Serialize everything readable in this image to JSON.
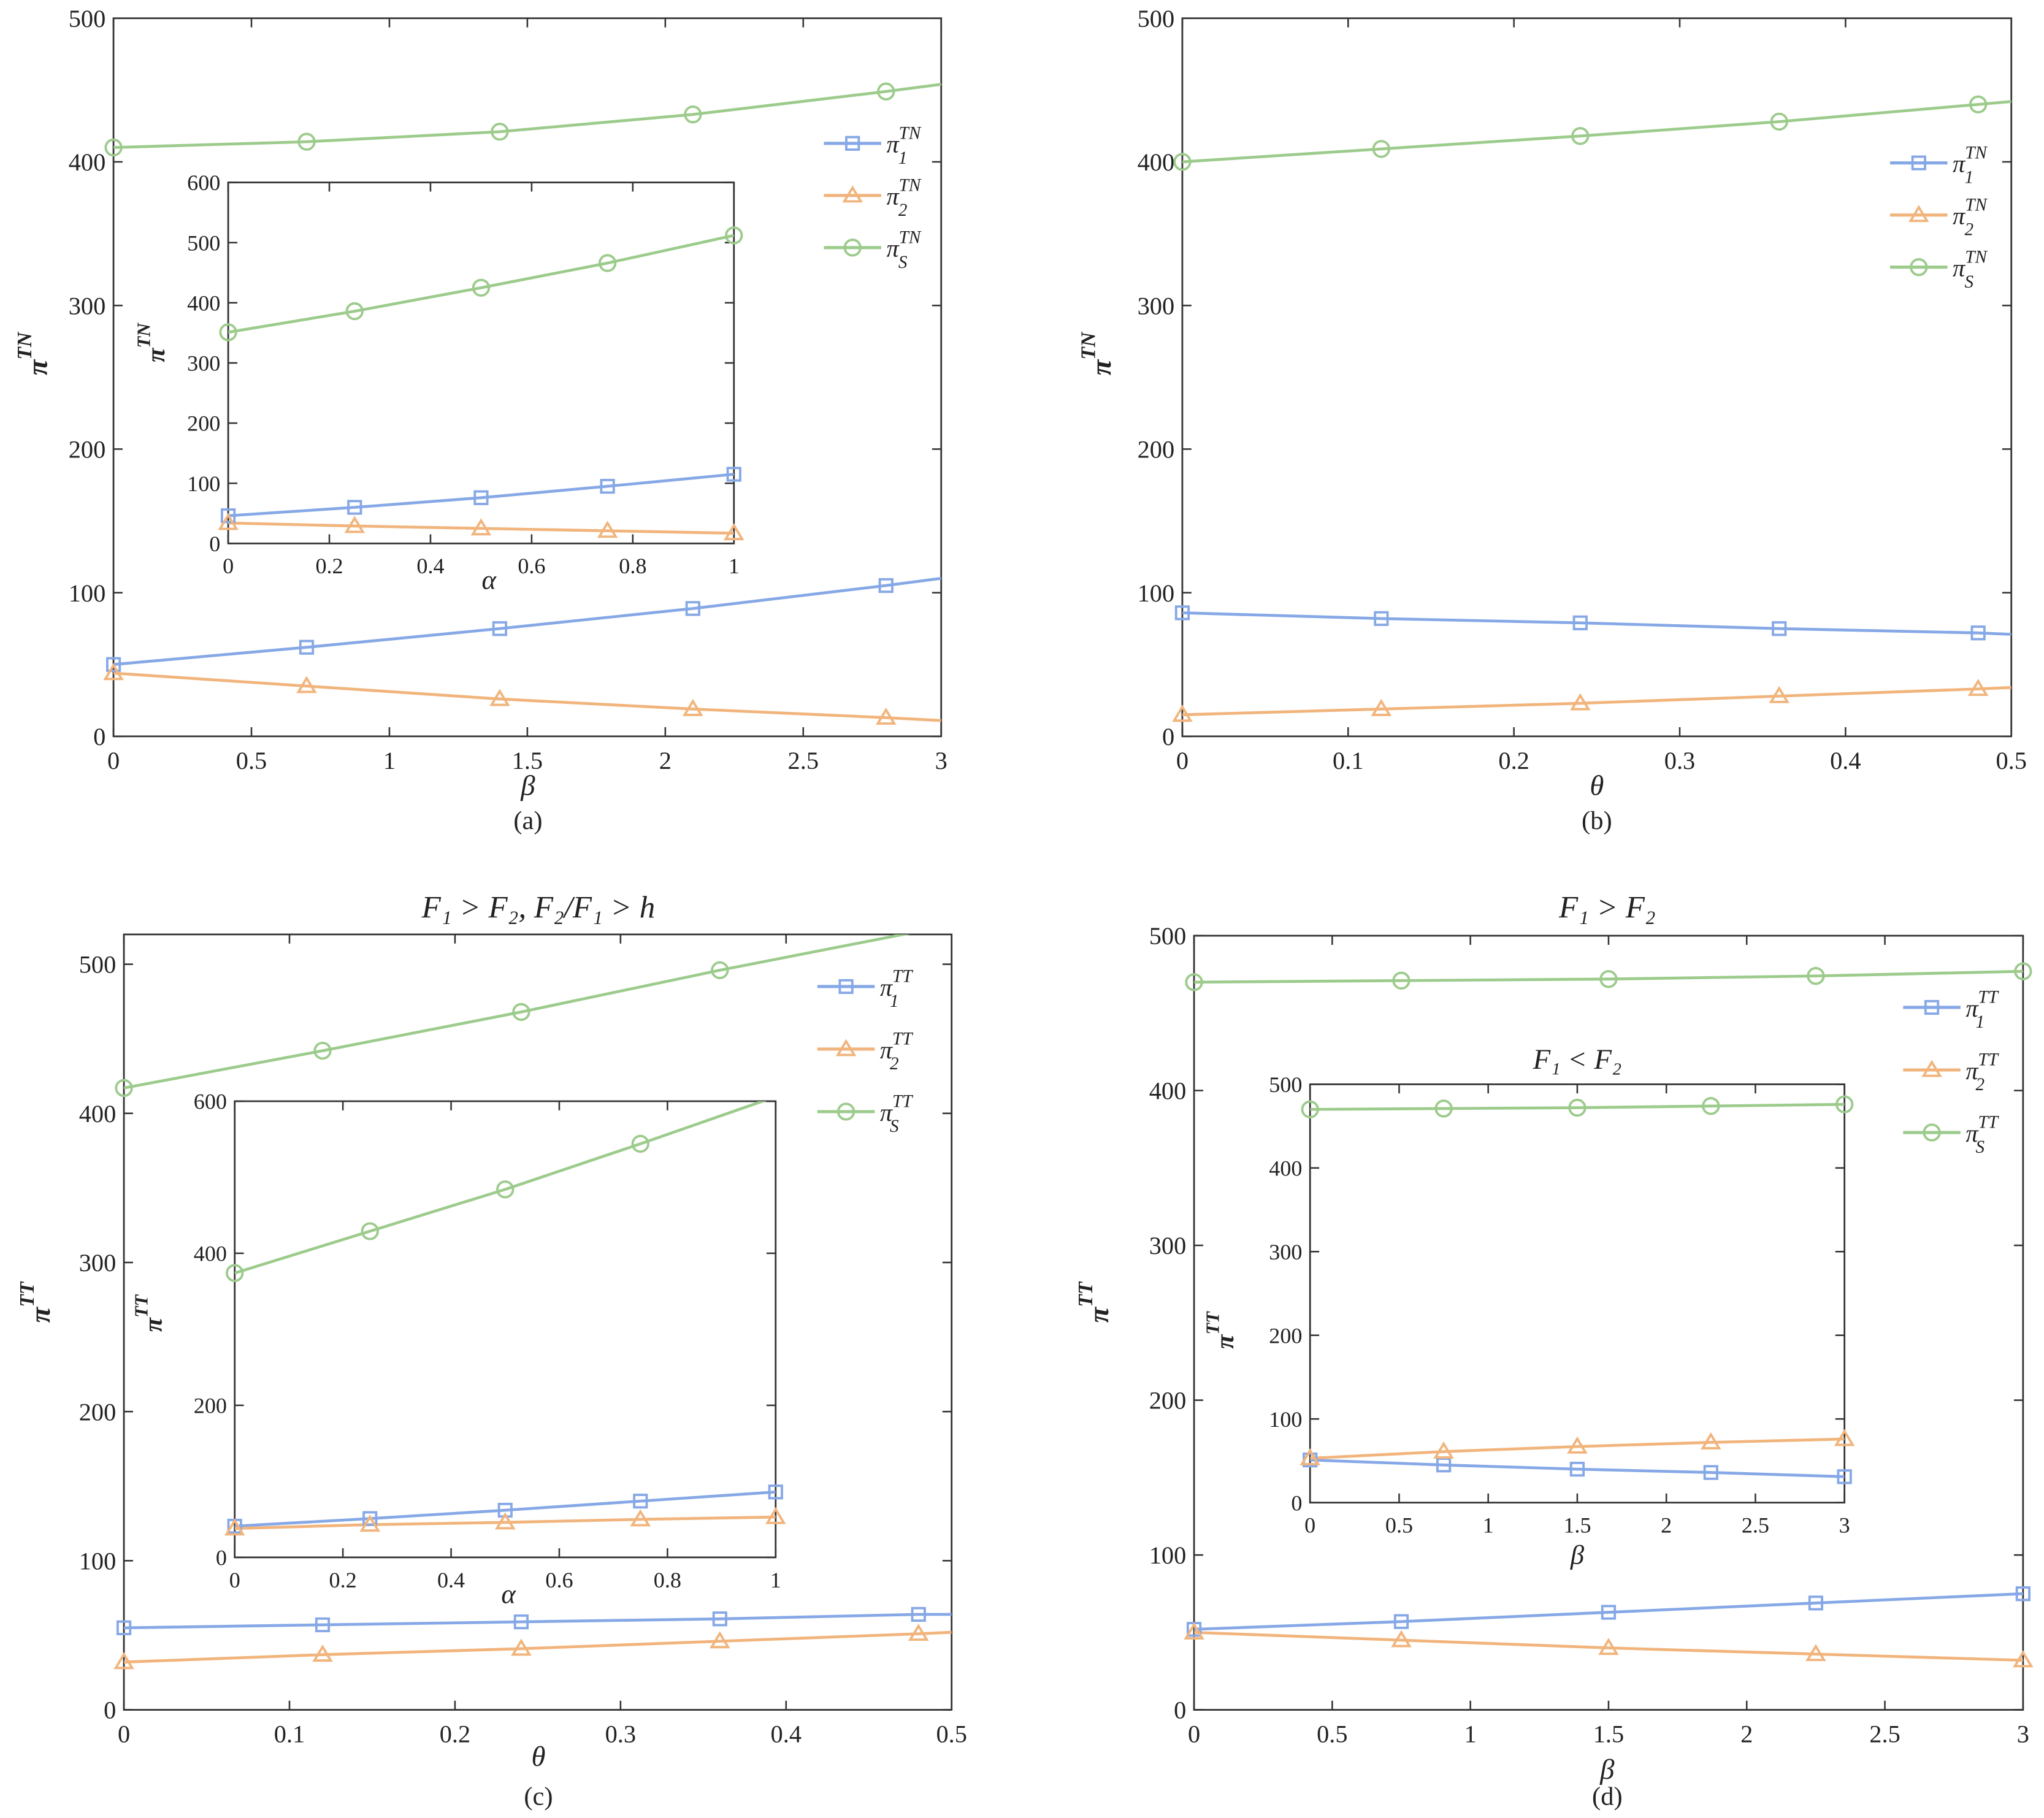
{
  "colors": {
    "pi1": "#86a8e6",
    "pi2": "#f1b47c",
    "piS": "#9ccb8c",
    "axis": "#333333"
  },
  "chart_data": [
    {
      "type": "line",
      "caption": "(a)",
      "title": "",
      "xlabel": "β",
      "ylabel": {
        "base": "π",
        "sup": "TN"
      },
      "xlim": [
        0,
        3
      ],
      "ylim": [
        0,
        500
      ],
      "xticks": [
        0,
        0.5,
        1,
        1.5,
        2,
        2.5,
        3
      ],
      "xticklabels": [
        "0",
        "0.5",
        "1",
        "1.5",
        "2",
        "2.5",
        "3"
      ],
      "yticks": [
        0,
        100,
        200,
        300,
        400,
        500
      ],
      "yticklabels": [
        "0",
        "100",
        "200",
        "300",
        "400",
        "500"
      ],
      "legend_position": "top-right",
      "series": [
        {
          "key": "pi1",
          "label": {
            "base": "π",
            "sup": "TN",
            "sub": "1"
          },
          "marker": "square",
          "x": [
            0,
            0.7,
            1.4,
            2.1,
            2.8,
            3
          ],
          "y": [
            50,
            62,
            75,
            89,
            105,
            110
          ],
          "marked": 5
        },
        {
          "key": "pi2",
          "label": {
            "base": "π",
            "sup": "TN",
            "sub": "2"
          },
          "marker": "triangle",
          "x": [
            0,
            0.7,
            1.4,
            2.1,
            2.8,
            3
          ],
          "y": [
            44,
            35,
            26,
            19,
            13,
            11
          ],
          "marked": 5
        },
        {
          "key": "piS",
          "label": {
            "base": "π",
            "sup": "TN",
            "sub": "S"
          },
          "marker": "circle",
          "x": [
            0,
            0.7,
            1.4,
            2.1,
            2.8,
            3
          ],
          "y": [
            410,
            414,
            421,
            433,
            449,
            454
          ],
          "marked": 5
        }
      ],
      "inset": {
        "type": "line",
        "title": "",
        "xlabel": "α",
        "ylabel": {
          "base": "π",
          "sup": "TN"
        },
        "xlim": [
          0,
          1
        ],
        "ylim": [
          0,
          600
        ],
        "xticks": [
          0,
          0.2,
          0.4,
          0.6,
          0.8,
          1
        ],
        "xticklabels": [
          "0",
          "0.2",
          "0.4",
          "0.6",
          "0.8",
          "1"
        ],
        "yticks": [
          0,
          100,
          200,
          300,
          400,
          500,
          600
        ],
        "yticklabels": [
          "0",
          "100",
          "200",
          "300",
          "400",
          "500",
          "600"
        ],
        "series": [
          {
            "key": "pi1",
            "marker": "square",
            "x": [
              0,
              0.25,
              0.5,
              0.75,
              1
            ],
            "y": [
              46,
              60,
              76,
              95,
              115
            ],
            "marked": 5
          },
          {
            "key": "pi2",
            "marker": "triangle",
            "x": [
              0,
              0.25,
              0.5,
              0.75,
              1
            ],
            "y": [
              34,
              29,
              25,
              21,
              17
            ],
            "marked": 5
          },
          {
            "key": "piS",
            "marker": "circle",
            "x": [
              0,
              0.25,
              0.5,
              0.75,
              1
            ],
            "y": [
              351,
              386,
              425,
              466,
              512
            ],
            "marked": 5
          }
        ]
      }
    },
    {
      "type": "line",
      "caption": "(b)",
      "title": "",
      "xlabel": "θ",
      "ylabel": {
        "base": "π",
        "sup": "TN"
      },
      "xlim": [
        0,
        0.5
      ],
      "ylim": [
        0,
        500
      ],
      "xticks": [
        0,
        0.1,
        0.2,
        0.3,
        0.4,
        0.5
      ],
      "xticklabels": [
        "0",
        "0.1",
        "0.2",
        "0.3",
        "0.4",
        "0.5"
      ],
      "yticks": [
        0,
        100,
        200,
        300,
        400,
        500
      ],
      "yticklabels": [
        "0",
        "100",
        "200",
        "300",
        "400",
        "500"
      ],
      "legend_position": "top-right",
      "series": [
        {
          "key": "pi1",
          "label": {
            "base": "π",
            "sup": "TN",
            "sub": "1"
          },
          "marker": "square",
          "x": [
            0,
            0.12,
            0.24,
            0.36,
            0.48,
            0.5
          ],
          "y": [
            86,
            82,
            79,
            75,
            72,
            71
          ],
          "marked": 5
        },
        {
          "key": "pi2",
          "label": {
            "base": "π",
            "sup": "TN",
            "sub": "2"
          },
          "marker": "triangle",
          "x": [
            0,
            0.12,
            0.24,
            0.36,
            0.48,
            0.5
          ],
          "y": [
            15,
            19,
            23,
            28,
            33,
            34
          ],
          "marked": 5
        },
        {
          "key": "piS",
          "label": {
            "base": "π",
            "sup": "TN",
            "sub": "S"
          },
          "marker": "circle",
          "x": [
            0,
            0.12,
            0.24,
            0.36,
            0.48,
            0.5
          ],
          "y": [
            400,
            409,
            418,
            428,
            440,
            442
          ],
          "marked": 5
        }
      ]
    },
    {
      "type": "line",
      "caption": "(c)",
      "title": "F₁ > F₂,  F₂/F₁ > h",
      "xlabel": "θ",
      "ylabel": {
        "base": "π",
        "sup": "TT"
      },
      "xlim": [
        0,
        0.5
      ],
      "ylim": [
        0,
        520
      ],
      "xticks": [
        0,
        0.1,
        0.2,
        0.3,
        0.4,
        0.5
      ],
      "xticklabels": [
        "0",
        "0.1",
        "0.2",
        "0.3",
        "0.4",
        "0.5"
      ],
      "yticks": [
        0,
        100,
        200,
        300,
        400,
        500
      ],
      "yticklabels": [
        "0",
        "100",
        "200",
        "300",
        "400",
        "500"
      ],
      "legend_position": "top-right",
      "series": [
        {
          "key": "pi1",
          "label": {
            "base": "π",
            "sup": "TT",
            "sub": "1"
          },
          "marker": "square",
          "x": [
            0,
            0.12,
            0.24,
            0.36,
            0.48,
            0.5
          ],
          "y": [
            55,
            57,
            59,
            61,
            64,
            64
          ],
          "marked": 5
        },
        {
          "key": "pi2",
          "label": {
            "base": "π",
            "sup": "TT",
            "sub": "2"
          },
          "marker": "triangle",
          "x": [
            0,
            0.12,
            0.24,
            0.36,
            0.48,
            0.5
          ],
          "y": [
            32,
            37,
            41,
            46,
            51,
            52
          ],
          "marked": 5
        },
        {
          "key": "piS",
          "label": {
            "base": "π",
            "sup": "TT",
            "sub": "S"
          },
          "marker": "circle",
          "x": [
            0,
            0.12,
            0.24,
            0.36,
            0.48,
            0.5
          ],
          "y": [
            417,
            442,
            468,
            496,
            522,
            524
          ],
          "marked": 4
        }
      ],
      "inset": {
        "type": "line",
        "title": "",
        "xlabel": "α",
        "ylabel": {
          "base": "π",
          "sup": "TT"
        },
        "xlim": [
          0,
          1
        ],
        "ylim": [
          0,
          600
        ],
        "xticks": [
          0,
          0.2,
          0.4,
          0.6,
          0.8,
          1
        ],
        "xticklabels": [
          "0",
          "0.2",
          "0.4",
          "0.6",
          "0.8",
          "1"
        ],
        "yticks": [
          0,
          200,
          400,
          600
        ],
        "yticklabels": [
          "0",
          "200",
          "400",
          "600"
        ],
        "series": [
          {
            "key": "pi1",
            "marker": "square",
            "x": [
              0,
              0.25,
              0.5,
              0.75,
              1
            ],
            "y": [
              41,
              51,
              62,
              74,
              86
            ],
            "marked": 5
          },
          {
            "key": "pi2",
            "marker": "triangle",
            "x": [
              0,
              0.25,
              0.5,
              0.75,
              1
            ],
            "y": [
              38,
              43,
              46,
              50,
              53
            ],
            "marked": 5
          },
          {
            "key": "piS",
            "marker": "circle",
            "x": [
              0,
              0.25,
              0.5,
              0.75,
              1
            ],
            "y": [
              374,
              429,
              484,
              544,
              606
            ],
            "marked": 4
          }
        ]
      }
    },
    {
      "type": "line",
      "caption": "(d)",
      "title": "F₁ > F₂",
      "xlabel": "β",
      "ylabel": {
        "base": "π",
        "sup": "TT"
      },
      "xlim": [
        0,
        3
      ],
      "ylim": [
        0,
        500
      ],
      "xticks": [
        0,
        0.5,
        1,
        1.5,
        2,
        2.5,
        3
      ],
      "xticklabels": [
        "0",
        "0.5",
        "1",
        "1.5",
        "2",
        "2.5",
        "3"
      ],
      "yticks": [
        0,
        100,
        200,
        300,
        400,
        500
      ],
      "yticklabels": [
        "0",
        "100",
        "200",
        "300",
        "400",
        "500"
      ],
      "legend_position": "top-right",
      "series": [
        {
          "key": "pi1",
          "label": {
            "base": "π",
            "sup": "TT",
            "sub": "1"
          },
          "marker": "square",
          "x": [
            0,
            0.75,
            1.5,
            2.25,
            3
          ],
          "y": [
            52,
            57,
            63,
            69,
            75
          ],
          "marked": 5
        },
        {
          "key": "pi2",
          "label": {
            "base": "π",
            "sup": "TT",
            "sub": "2"
          },
          "marker": "triangle",
          "x": [
            0,
            0.75,
            1.5,
            2.25,
            3
          ],
          "y": [
            50,
            45,
            40,
            36,
            32
          ],
          "marked": 5
        },
        {
          "key": "piS",
          "label": {
            "base": "π",
            "sup": "TT",
            "sub": "S"
          },
          "marker": "circle",
          "x": [
            0,
            0.75,
            1.5,
            2.25,
            3
          ],
          "y": [
            470,
            471,
            472,
            474,
            477
          ],
          "marked": 5
        }
      ],
      "inset": {
        "type": "line",
        "title": "F₁ < F₂",
        "xlabel": "β",
        "ylabel": {
          "base": "π",
          "sup": "TT"
        },
        "xlim": [
          0,
          3
        ],
        "ylim": [
          0,
          500
        ],
        "xticks": [
          0,
          0.5,
          1,
          1.5,
          2,
          2.5,
          3
        ],
        "xticklabels": [
          "0",
          "0.5",
          "1",
          "1.5",
          "2",
          "2.5",
          "3"
        ],
        "yticks": [
          0,
          100,
          200,
          300,
          400,
          500
        ],
        "yticklabels": [
          "0",
          "100",
          "200",
          "300",
          "400",
          "500"
        ],
        "series": [
          {
            "key": "pi1",
            "marker": "square",
            "x": [
              0,
              0.75,
              1.5,
              2.25,
              3
            ],
            "y": [
              51,
              45,
              40,
              36,
              31
            ],
            "marked": 5
          },
          {
            "key": "pi2",
            "marker": "triangle",
            "x": [
              0,
              0.75,
              1.5,
              2.25,
              3
            ],
            "y": [
              53,
              61,
              67,
              72,
              76
            ],
            "marked": 5
          },
          {
            "key": "piS",
            "marker": "circle",
            "x": [
              0,
              0.75,
              1.5,
              2.25,
              3
            ],
            "y": [
              470,
              471,
              472,
              474,
              476
            ],
            "marked": 5
          }
        ]
      }
    }
  ]
}
